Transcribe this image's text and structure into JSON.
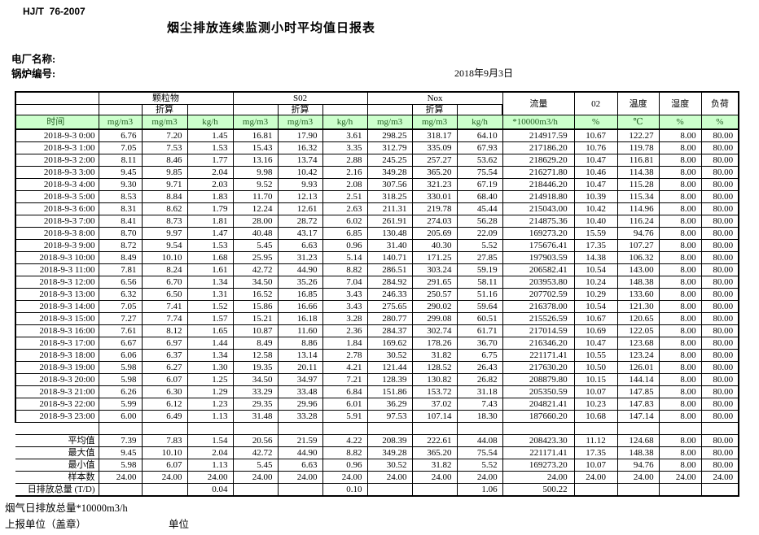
{
  "page": {
    "standard_code": "HJ/T  76-2007",
    "title": "烟尘排放连续监测小时平均值日报表",
    "plant_label": "电厂名称:",
    "boiler_label": "锅炉编号:",
    "report_date": "2018年9月3日",
    "footnote": "烟气日排放总量*10000m3/h",
    "report_unit_label": "上报单位（盖章）",
    "unit_label": "单位"
  },
  "colors": {
    "header_bg": "#ccffcc",
    "header_text": "#226022",
    "border": "#000000"
  },
  "table": {
    "time_header": "时间",
    "groups": [
      {
        "label": "颗粒物",
        "sub": "折算"
      },
      {
        "label": "S02",
        "sub": "折算"
      },
      {
        "label": "Nox",
        "sub": "折算"
      }
    ],
    "single_cols": [
      "流量",
      "02",
      "温度",
      "湿度",
      "负荷"
    ],
    "units": [
      "mg/m3",
      "mg/m3",
      "kg/h",
      "mg/m3",
      "mg/m3",
      "kg/h",
      "mg/m3",
      "mg/m3",
      "kg/h",
      "*10000m3/h",
      "%",
      "℃",
      "%",
      "%"
    ],
    "rows": [
      [
        "2018-9-3 0:00",
        "6.76",
        "7.20",
        "1.45",
        "16.81",
        "17.90",
        "3.61",
        "298.25",
        "318.17",
        "64.10",
        "214917.59",
        "10.67",
        "122.27",
        "8.00",
        "80.00"
      ],
      [
        "2018-9-3 1:00",
        "7.05",
        "7.53",
        "1.53",
        "15.43",
        "16.32",
        "3.35",
        "312.79",
        "335.09",
        "67.93",
        "217186.20",
        "10.76",
        "119.78",
        "8.00",
        "80.00"
      ],
      [
        "2018-9-3 2:00",
        "8.11",
        "8.46",
        "1.77",
        "13.16",
        "13.74",
        "2.88",
        "245.25",
        "257.27",
        "53.62",
        "218629.20",
        "10.47",
        "116.81",
        "8.00",
        "80.00"
      ],
      [
        "2018-9-3 3:00",
        "9.45",
        "9.85",
        "2.04",
        "9.98",
        "10.42",
        "2.16",
        "349.28",
        "365.20",
        "75.54",
        "216271.80",
        "10.46",
        "114.38",
        "8.00",
        "80.00"
      ],
      [
        "2018-9-3 4:00",
        "9.30",
        "9.71",
        "2.03",
        "9.52",
        "9.93",
        "2.08",
        "307.56",
        "321.23",
        "67.19",
        "218446.20",
        "10.47",
        "115.28",
        "8.00",
        "80.00"
      ],
      [
        "2018-9-3 5:00",
        "8.53",
        "8.84",
        "1.83",
        "11.70",
        "12.13",
        "2.51",
        "318.25",
        "330.01",
        "68.40",
        "214918.80",
        "10.39",
        "115.34",
        "8.00",
        "80.00"
      ],
      [
        "2018-9-3 6:00",
        "8.31",
        "8.62",
        "1.79",
        "12.24",
        "12.61",
        "2.63",
        "211.31",
        "219.78",
        "45.44",
        "215043.00",
        "10.42",
        "114.96",
        "8.00",
        "80.00"
      ],
      [
        "2018-9-3 7:00",
        "8.41",
        "8.73",
        "1.81",
        "28.00",
        "28.72",
        "6.02",
        "261.91",
        "274.03",
        "56.28",
        "214875.36",
        "10.40",
        "116.24",
        "8.00",
        "80.00"
      ],
      [
        "2018-9-3 8:00",
        "8.70",
        "9.97",
        "1.47",
        "40.48",
        "43.17",
        "6.85",
        "130.48",
        "205.69",
        "22.09",
        "169273.20",
        "15.59",
        "94.76",
        "8.00",
        "80.00"
      ],
      [
        "2018-9-3 9:00",
        "8.72",
        "9.54",
        "1.53",
        "5.45",
        "6.63",
        "0.96",
        "31.40",
        "40.30",
        "5.52",
        "175676.41",
        "17.35",
        "107.27",
        "8.00",
        "80.00"
      ],
      [
        "2018-9-3 10:00",
        "8.49",
        "10.10",
        "1.68",
        "25.95",
        "31.23",
        "5.14",
        "140.71",
        "171.25",
        "27.85",
        "197903.59",
        "14.38",
        "106.32",
        "8.00",
        "80.00"
      ],
      [
        "2018-9-3 11:00",
        "7.81",
        "8.24",
        "1.61",
        "42.72",
        "44.90",
        "8.82",
        "286.51",
        "303.24",
        "59.19",
        "206582.41",
        "10.54",
        "143.00",
        "8.00",
        "80.00"
      ],
      [
        "2018-9-3 12:00",
        "6.56",
        "6.70",
        "1.34",
        "34.50",
        "35.26",
        "7.04",
        "284.92",
        "291.65",
        "58.11",
        "203953.80",
        "10.24",
        "148.38",
        "8.00",
        "80.00"
      ],
      [
        "2018-9-3 13:00",
        "6.32",
        "6.50",
        "1.31",
        "16.52",
        "16.85",
        "3.43",
        "246.33",
        "250.57",
        "51.16",
        "207702.59",
        "10.29",
        "133.60",
        "8.00",
        "80.00"
      ],
      [
        "2018-9-3 14:00",
        "7.05",
        "7.41",
        "1.52",
        "15.86",
        "16.66",
        "3.43",
        "275.65",
        "290.02",
        "59.64",
        "216378.00",
        "10.54",
        "121.30",
        "8.00",
        "80.00"
      ],
      [
        "2018-9-3 15:00",
        "7.27",
        "7.74",
        "1.57",
        "15.21",
        "16.18",
        "3.28",
        "280.77",
        "299.08",
        "60.51",
        "215526.59",
        "10.67",
        "120.65",
        "8.00",
        "80.00"
      ],
      [
        "2018-9-3 16:00",
        "7.61",
        "8.12",
        "1.65",
        "10.87",
        "11.60",
        "2.36",
        "284.37",
        "302.74",
        "61.71",
        "217014.59",
        "10.69",
        "122.05",
        "8.00",
        "80.00"
      ],
      [
        "2018-9-3 17:00",
        "6.67",
        "6.97",
        "1.44",
        "8.49",
        "8.86",
        "1.84",
        "169.62",
        "178.26",
        "36.70",
        "216346.20",
        "10.47",
        "123.68",
        "8.00",
        "80.00"
      ],
      [
        "2018-9-3 18:00",
        "6.06",
        "6.37",
        "1.34",
        "12.58",
        "13.14",
        "2.78",
        "30.52",
        "31.82",
        "6.75",
        "221171.41",
        "10.55",
        "123.24",
        "8.00",
        "80.00"
      ],
      [
        "2018-9-3 19:00",
        "5.98",
        "6.27",
        "1.30",
        "19.35",
        "20.11",
        "4.21",
        "121.44",
        "128.52",
        "26.43",
        "217630.20",
        "10.50",
        "126.01",
        "8.00",
        "80.00"
      ],
      [
        "2018-9-3 20:00",
        "5.98",
        "6.07",
        "1.25",
        "34.50",
        "34.97",
        "7.21",
        "128.39",
        "130.82",
        "26.82",
        "208879.80",
        "10.15",
        "144.14",
        "8.00",
        "80.00"
      ],
      [
        "2018-9-3 21:00",
        "6.26",
        "6.30",
        "1.29",
        "33.29",
        "33.48",
        "6.84",
        "151.86",
        "153.72",
        "31.18",
        "205350.59",
        "10.07",
        "147.85",
        "8.00",
        "80.00"
      ],
      [
        "2018-9-3 22:00",
        "5.99",
        "6.12",
        "1.23",
        "29.35",
        "29.96",
        "6.01",
        "36.29",
        "37.02",
        "7.43",
        "204821.41",
        "10.23",
        "147.83",
        "8.00",
        "80.00"
      ],
      [
        "2018-9-3 23:00",
        "6.00",
        "6.49",
        "1.13",
        "31.48",
        "33.28",
        "5.91",
        "97.53",
        "107.14",
        "18.30",
        "187660.20",
        "10.68",
        "147.14",
        "8.00",
        "80.00"
      ]
    ],
    "summary": [
      {
        "label": "平均值",
        "values": [
          "7.39",
          "7.83",
          "1.54",
          "20.56",
          "21.59",
          "4.22",
          "208.39",
          "222.61",
          "44.08",
          "208423.30",
          "11.12",
          "124.68",
          "8.00",
          "80.00"
        ]
      },
      {
        "label": "最大值",
        "values": [
          "9.45",
          "10.10",
          "2.04",
          "42.72",
          "44.90",
          "8.82",
          "349.28",
          "365.20",
          "75.54",
          "221171.41",
          "17.35",
          "148.38",
          "8.00",
          "80.00"
        ]
      },
      {
        "label": "最小值",
        "values": [
          "5.98",
          "6.07",
          "1.13",
          "5.45",
          "6.63",
          "0.96",
          "30.52",
          "31.82",
          "5.52",
          "169273.20",
          "10.07",
          "94.76",
          "8.00",
          "80.00"
        ]
      },
      {
        "label": "样本数",
        "values": [
          "24.00",
          "24.00",
          "24.00",
          "24.00",
          "24.00",
          "24.00",
          "24.00",
          "24.00",
          "24.00",
          "24.00",
          "24.00",
          "24.00",
          "24.00",
          "24.00"
        ]
      },
      {
        "label": "日排放总量 (T/D)",
        "values": [
          "",
          "",
          "0.04",
          "",
          "",
          "0.10",
          "",
          "",
          "1.06",
          "500.22",
          "",
          "",
          "",
          ""
        ]
      }
    ]
  }
}
